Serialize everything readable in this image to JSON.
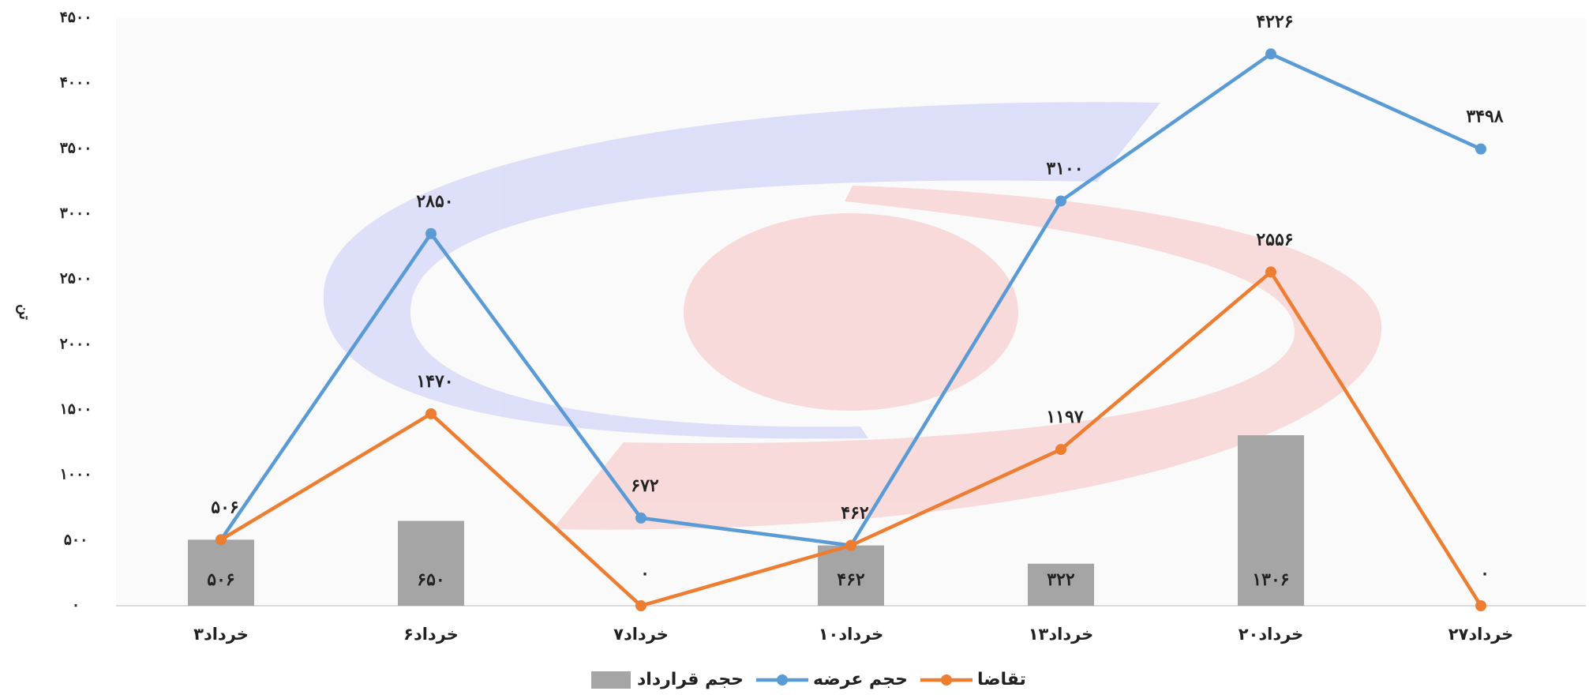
{
  "chart_data": {
    "type": "bar",
    "y_label": "تن",
    "categories": [
      "۳خرداد",
      "۶خرداد",
      "۷خرداد",
      "۱۰خرداد",
      "۱۳خرداد",
      "۲۰خرداد",
      "۲۷خرداد"
    ],
    "series": [
      {
        "name": "حجم قرارداد",
        "type": "bar",
        "color": "#a5a5a5",
        "values": [
          506,
          650,
          null,
          462,
          322,
          1306,
          null
        ],
        "value_labels": [
          "۵۰۶",
          "۶۵۰",
          null,
          "۴۶۲",
          "۳۲۲",
          "۱۳۰۶",
          null
        ]
      },
      {
        "name": "حجم عرضه",
        "type": "line",
        "color": "#5b9bd5",
        "values": [
          506,
          2850,
          672,
          462,
          3100,
          4226,
          3498
        ],
        "value_labels": [
          "۵۰۶",
          "۲۸۵۰",
          "۶۷۲",
          "۴۶۲",
          "۳۱۰۰",
          "۴۲۲۶",
          "۳۴۹۸"
        ]
      },
      {
        "name": "تقاضا",
        "type": "line",
        "color": "#ed7d31",
        "values": [
          506,
          1470,
          0,
          462,
          1197,
          2556,
          0
        ],
        "value_labels": [
          null,
          "۱۴۷۰",
          "۰",
          null,
          "۱۱۹۷",
          "۲۵۵۶",
          "۰"
        ]
      }
    ],
    "ylim": [
      0,
      4500
    ],
    "yticks": [
      {
        "value": 0,
        "label": "۰"
      },
      {
        "value": 500,
        "label": "۵۰۰"
      },
      {
        "value": 1000,
        "label": "۱۰۰۰"
      },
      {
        "value": 1500,
        "label": "۱۵۰۰"
      },
      {
        "value": 2000,
        "label": "۲۰۰۰"
      },
      {
        "value": 2500,
        "label": "۲۵۰۰"
      },
      {
        "value": 3000,
        "label": "۳۰۰۰"
      },
      {
        "value": 3500,
        "label": "۳۵۰۰"
      },
      {
        "value": 4000,
        "label": "۴۰۰۰"
      },
      {
        "value": 4500,
        "label": "۴۵۰۰"
      }
    ],
    "grid": false,
    "legend": "bottom"
  }
}
